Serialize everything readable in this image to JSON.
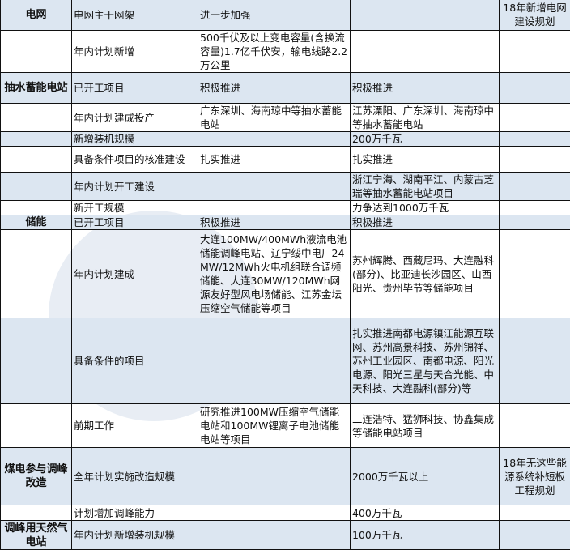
{
  "rows": [
    {
      "category": "电网",
      "item": "电网主干网架",
      "col3": "进一步加强",
      "col4": "",
      "note": "18年新增电网建设规划",
      "shade": true
    },
    {
      "category": "",
      "item": "年内计划新增",
      "col3": "500千伏及以上变电容量(含换流容量)1.7亿千伏安，输电线路2.2万公里",
      "col4": "",
      "note": "",
      "shade": false
    },
    {
      "category": "抽水蓄能电站",
      "item": "已开工项目",
      "col3": "积极推进",
      "col4": "积极推进",
      "note": "",
      "shade": true
    },
    {
      "category": "",
      "item": "年内计划建成投产",
      "col3": "广东深圳、海南琼中等抽水蓄能电站",
      "col4": "江苏溧阳、广东深圳、海南琼中等抽水蓄能电站",
      "note": "",
      "shade": false
    },
    {
      "category": "",
      "item": "新增装机规模",
      "col3": "",
      "col4": "200万千瓦",
      "note": "",
      "shade": true
    },
    {
      "category": "",
      "item": "具备条件项目的核准建设",
      "col3": "扎实推进",
      "col4": "扎实推进",
      "note": "",
      "shade": false
    },
    {
      "category": "",
      "item": "年内计划开工建设",
      "col3": "",
      "col4": "浙江宁海、湖南平江、内蒙古芝瑞等抽水蓄能电站项目",
      "note": "",
      "shade": true
    },
    {
      "category": "",
      "item": "新开工规模",
      "col3": "",
      "col4": "力争达到1000万千瓦",
      "note": "",
      "shade": false
    },
    {
      "category": "储能",
      "item": "已开工项目",
      "col3": "积极推进",
      "col4": "积极推进",
      "note": "",
      "shade": true
    },
    {
      "category": "",
      "item": "年内计划建成",
      "col3": "大连100MW/400MWh液流电池储能调峰电站、辽宁绥中电厂24MW/12MWh火电机组联合调频储能、大连30MW/120MWh网源友好型风电场储能、江苏金坛压缩空气储能等项目",
      "col4": "苏州辉腾、西藏尼玛、大连融科(部分)、比亚迪长沙园区、山西阳光、贵州毕节等储能项目",
      "note": "",
      "shade": false
    },
    {
      "category": "",
      "item": "具备条件的项目",
      "col3": "",
      "col4": "扎实推进南都电源镇江能源互联网、苏州高景科技、苏州锦祥、苏州工业园区、南都电源、阳光电源、阳光三星与天合光能、中天科技、大连融科(部分)等",
      "note": "",
      "shade": true
    },
    {
      "category": "",
      "item": "前期工作",
      "col3": "研究推进100MW压缩空气储能电站和100MW锂离子电池储能电站等项目",
      "col4": "二连浩特、猛狮科技、协鑫集成等储能电站项目",
      "note": "",
      "shade": false
    },
    {
      "category": "煤电参与调峰改造",
      "item": "全年计划实施改造规模",
      "col3": "",
      "col4": "2000万千瓦以上",
      "note": "18年无这些能源系统补短板工程规划",
      "shade": true
    },
    {
      "category": "",
      "item": "计划增加调峰能力",
      "col3": "",
      "col4": "400万千瓦",
      "note": "",
      "shade": false
    },
    {
      "category": "调峰用天然气电站",
      "item": "年内计划新增装机规模",
      "col3": "",
      "col4": "100万千瓦",
      "note": "",
      "shade": true
    }
  ]
}
